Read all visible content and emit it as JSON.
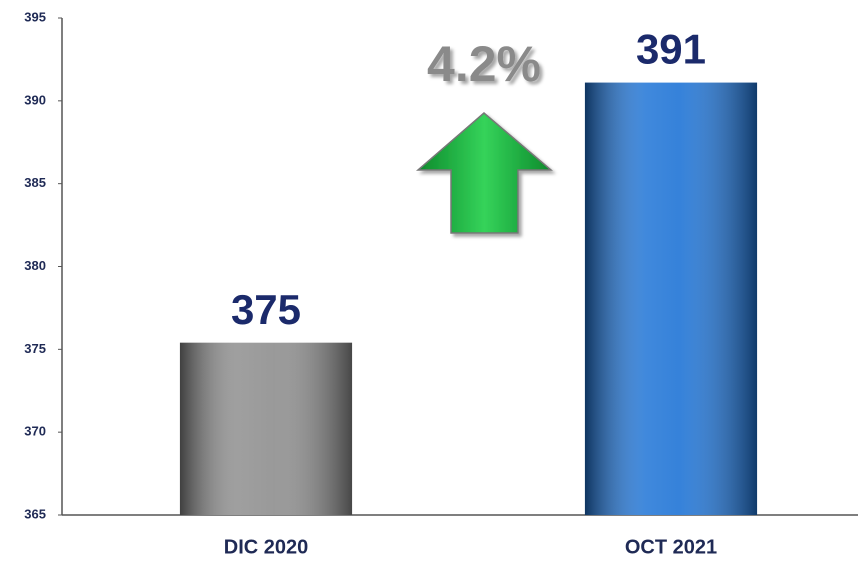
{
  "chart_data": {
    "type": "bar",
    "categories": [
      "DIC 2020",
      "OCT 2021"
    ],
    "values": [
      375.4,
      391.1
    ],
    "value_labels": [
      "375",
      "391"
    ],
    "colors": [
      "#8e8e8e",
      "#1f74d6"
    ],
    "ylim": [
      365,
      395
    ],
    "yticks": [
      365,
      370,
      375,
      380,
      385,
      390,
      395
    ],
    "grid": false,
    "annotation": "4.2%"
  }
}
